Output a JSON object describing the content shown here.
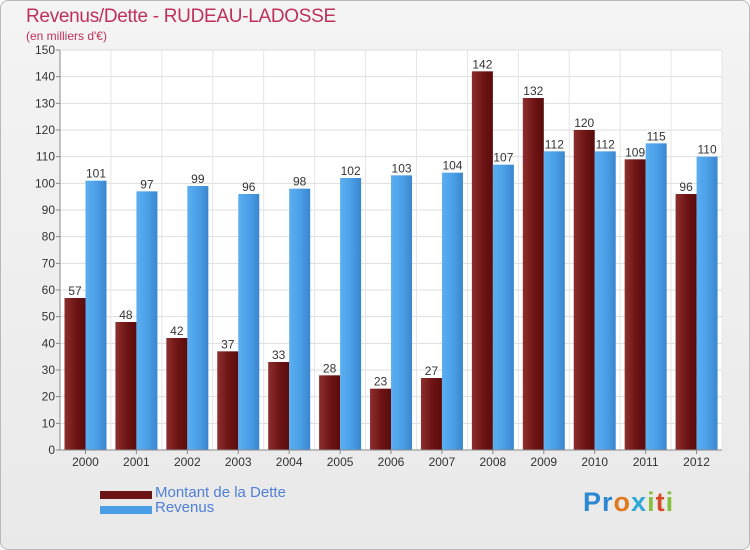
{
  "title": "Revenus/Dette - RUDEAU-LADOSSE",
  "subtitle": "(en milliers d'€)",
  "logo": "Proxiti",
  "legend": [
    {
      "label": "Montant de la Dette",
      "color": "#7a1a1a"
    },
    {
      "label": "Revenus",
      "color": "#4a9ee6"
    }
  ],
  "chart_data": {
    "type": "bar",
    "categories": [
      "2000",
      "2001",
      "2002",
      "2003",
      "2004",
      "2005",
      "2006",
      "2007",
      "2008",
      "2009",
      "2010",
      "2011",
      "2012"
    ],
    "series": [
      {
        "name": "Montant de la Dette",
        "values": [
          57,
          48,
          42,
          37,
          33,
          28,
          23,
          27,
          142,
          132,
          120,
          109,
          96
        ],
        "color": "#7a1a1a"
      },
      {
        "name": "Revenus",
        "values": [
          101,
          97,
          99,
          96,
          98,
          102,
          103,
          104,
          107,
          112,
          112,
          115,
          110
        ],
        "color": "#4a9ee6"
      }
    ],
    "ylim": [
      0,
      150
    ],
    "yticks": [
      0,
      10,
      20,
      30,
      40,
      50,
      60,
      70,
      80,
      90,
      100,
      110,
      120,
      130,
      140,
      150
    ],
    "grid": true,
    "legend_position": "bottom-left"
  }
}
